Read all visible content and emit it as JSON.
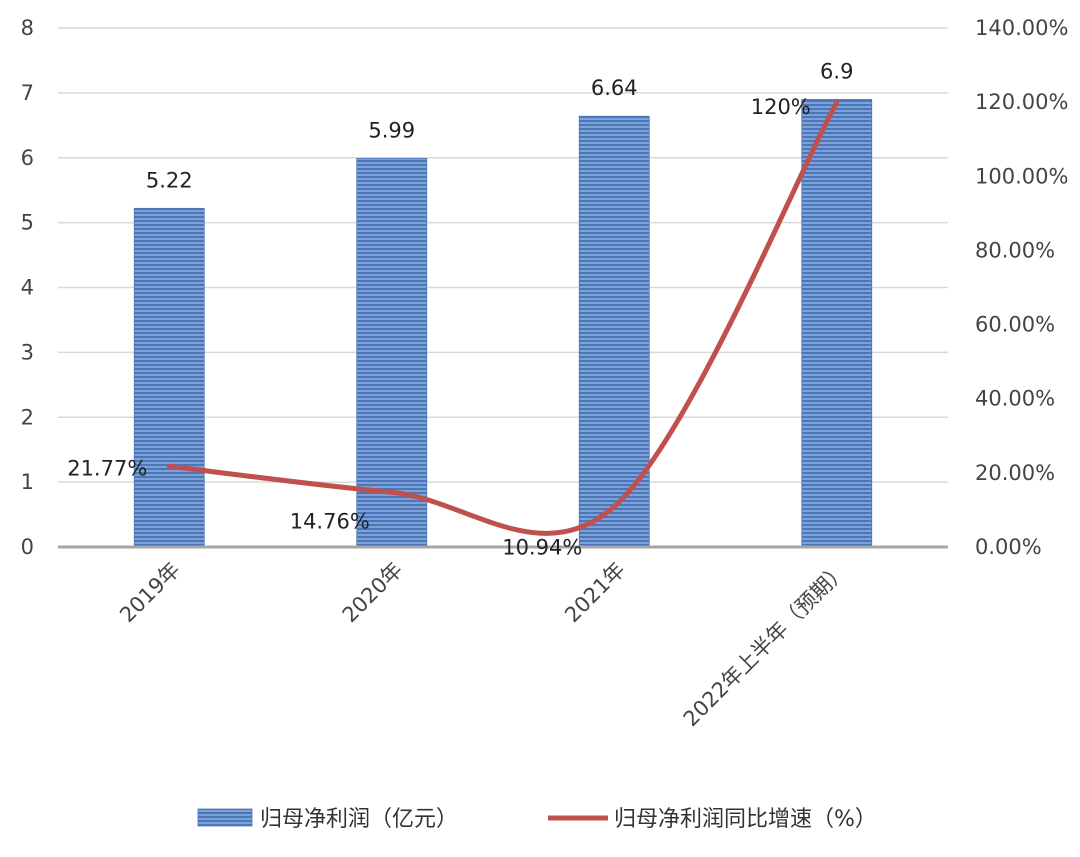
{
  "chart_data": {
    "type": "bar",
    "categories": [
      "2019年",
      "2020年",
      "2021年",
      "2022年上半年（预期）"
    ],
    "series": [
      {
        "name": "归母净利润（亿元）",
        "type": "bar",
        "axis": "left",
        "color": "#5b86c4",
        "values": [
          5.22,
          5.99,
          6.64,
          6.9
        ],
        "labels": [
          "5.22",
          "5.99",
          "6.64",
          "6.9"
        ]
      },
      {
        "name": "归母净利润同比增速（%）",
        "type": "line",
        "axis": "right",
        "color": "#c0504d",
        "values": [
          21.77,
          14.76,
          10.94,
          120
        ],
        "labels": [
          "21.77%",
          "14.76%",
          "10.94%",
          "120%"
        ]
      }
    ],
    "y_left": {
      "min": 0,
      "max": 8,
      "step": 1,
      "ticks": [
        "0",
        "1",
        "2",
        "3",
        "4",
        "5",
        "6",
        "7",
        "8"
      ]
    },
    "y_right": {
      "min": 0,
      "max": 140,
      "step": 20,
      "ticks": [
        "0.00%",
        "20.00%",
        "40.00%",
        "60.00%",
        "80.00%",
        "100.00%",
        "120.00%",
        "140.00%"
      ]
    },
    "grid": true,
    "legend_position": "bottom"
  }
}
